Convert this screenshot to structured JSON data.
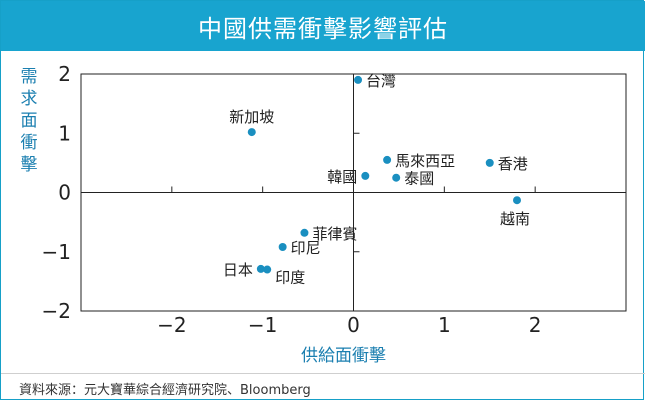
{
  "title": "中國供需衝擊影響評估",
  "source": "資料來源：元大寶華綜合經濟研究院、Bloomberg",
  "colors": {
    "accent": "#18a4cf",
    "point": "#1a8fc0",
    "axis_label": "#1b7fb0"
  },
  "chart_data": {
    "type": "scatter",
    "title": "中國供需衝擊影響評估",
    "xlabel": "供給面衝擊",
    "ylabel": "需求面衝擊",
    "xlim": [
      -3,
      3
    ],
    "ylim": [
      -2,
      2
    ],
    "xticks": [
      -2,
      -1,
      0,
      1,
      2
    ],
    "yticks": [
      -2,
      -1,
      0,
      1,
      2
    ],
    "grid": false,
    "points": [
      {
        "label": "台灣",
        "x": 0.05,
        "y": 1.9,
        "label_pos": "right"
      },
      {
        "label": "新加坡",
        "x": -1.12,
        "y": 1.02,
        "label_pos": "top"
      },
      {
        "label": "馬來西亞",
        "x": 0.37,
        "y": 0.55,
        "label_pos": "right"
      },
      {
        "label": "香港",
        "x": 1.5,
        "y": 0.5,
        "label_pos": "right"
      },
      {
        "label": "韓國",
        "x": 0.13,
        "y": 0.28,
        "label_pos": "left"
      },
      {
        "label": "泰國",
        "x": 0.47,
        "y": 0.25,
        "label_pos": "right"
      },
      {
        "label": "越南",
        "x": 1.8,
        "y": -0.13,
        "label_pos": "bottom"
      },
      {
        "label": "菲律賓",
        "x": -0.54,
        "y": -0.68,
        "label_pos": "right"
      },
      {
        "label": "印尼",
        "x": -0.78,
        "y": -0.92,
        "label_pos": "right"
      },
      {
        "label": "日本",
        "x": -1.02,
        "y": -1.29,
        "label_pos": "left"
      },
      {
        "label": "印度",
        "x": -0.95,
        "y": -1.3,
        "label_pos": "rightbelow"
      }
    ]
  }
}
